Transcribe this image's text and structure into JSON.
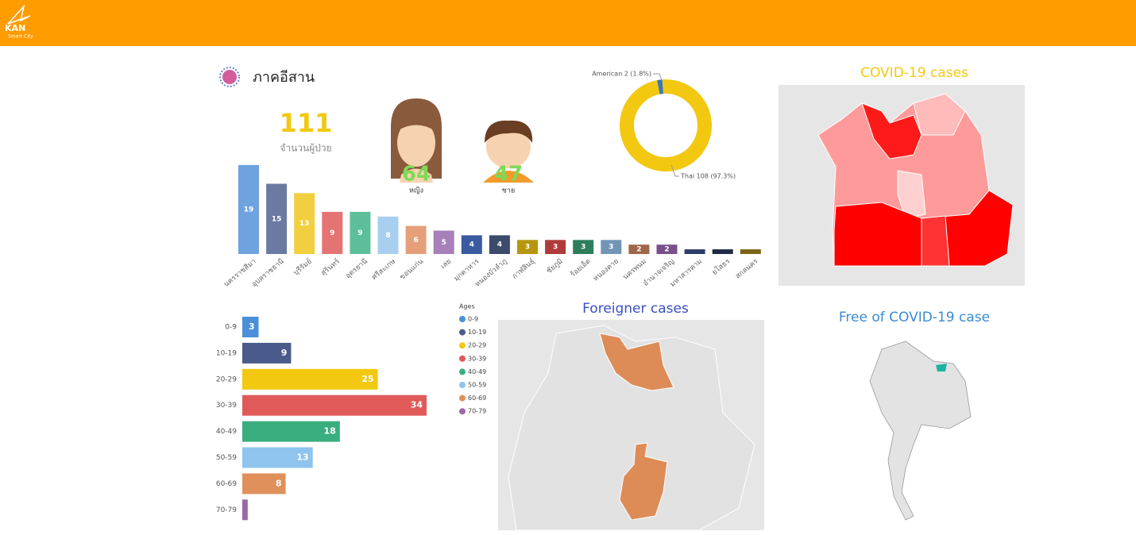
{
  "header": {
    "logo": "KAN",
    "logo_sub": "Smart City"
  },
  "summary": {
    "region": "ภาคอีสาน",
    "total": 111,
    "total_label": "จำนวนผู้ป่วย",
    "female": 64,
    "female_label": "หญิง",
    "male": 47,
    "male_label": "ชาย"
  },
  "maps": {
    "covid_title": "COVID-19 cases",
    "foreigner_title": "Foreigner cases",
    "free_title": "Free of COVID-19 case"
  },
  "chart_data": [
    {
      "type": "bar",
      "categories": [
        "นครราชสีมา",
        "อุบลราชธานี",
        "บุรีรัมย์",
        "สุรินทร์",
        "อุดรธานี",
        "ศรีสะเกษ",
        "ขอนแก่น",
        "เลย",
        "มุกดาหาร",
        "หนองบัวลำภู",
        "กาฬสินธุ์",
        "ชัยภูมิ",
        "ร้อยเอ็ด",
        "หนองคาย",
        "นครพนม",
        "อำนาจเจริญ",
        "มหาสารคาม",
        "ยโสธร",
        "สกลนคร"
      ],
      "values": [
        19,
        15,
        13,
        9,
        9,
        8,
        6,
        5,
        4,
        4,
        3,
        3,
        3,
        3,
        2,
        2,
        1,
        1,
        1
      ],
      "colors": [
        "#6fa3e0",
        "#6b7aa1",
        "#f2cf3e",
        "#e57373",
        "#5dbf9a",
        "#a9cff0",
        "#e5a07a",
        "#a680b8",
        "#3a5ba0",
        "#3c4a6b",
        "#b8950f",
        "#b03a3a",
        "#2e7d5b",
        "#7395b5",
        "#a0664a",
        "#7a4f8c",
        "#2c3e66",
        "#1f2a44",
        "#7a6414"
      ]
    },
    {
      "type": "pie",
      "categories": [
        "American",
        "Thai"
      ],
      "values": [
        2,
        108
      ],
      "value_labels": [
        "American 2 (1.8%)",
        "Thai 108 (97.3%)"
      ],
      "colors": [
        "#3a78b5",
        "#f2c811"
      ]
    },
    {
      "type": "hbar",
      "legend_title": "Ages",
      "categories": [
        "0-9",
        "10-19",
        "20-29",
        "30-39",
        "40-49",
        "50-59",
        "60-69",
        "70-79"
      ],
      "values": [
        3,
        9,
        25,
        34,
        18,
        13,
        8,
        1
      ],
      "colors": [
        "#4a8fd9",
        "#4a5a8a",
        "#f2c811",
        "#e05a5a",
        "#3aae7e",
        "#8ec4ee",
        "#e0905a",
        "#9b68a8"
      ]
    }
  ]
}
